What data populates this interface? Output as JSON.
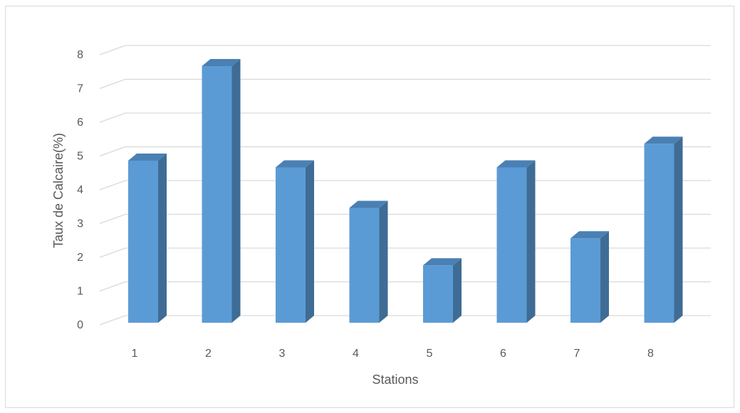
{
  "chart_data": {
    "type": "bar",
    "categories": [
      "1",
      "2",
      "3",
      "4",
      "5",
      "6",
      "7",
      "8"
    ],
    "values": [
      4.8,
      7.6,
      4.6,
      3.4,
      1.7,
      4.6,
      2.5,
      5.3
    ],
    "title": "",
    "xlabel": "Stations",
    "ylabel": "Taux de Calcaire(%)",
    "ylim": [
      0,
      8
    ],
    "yticks": [
      "0",
      "1",
      "2",
      "3",
      "4",
      "5",
      "6",
      "7",
      "8"
    ],
    "grid": true,
    "legend": "none",
    "three_d": true,
    "colors": {
      "bar_front": "#5b9bd5",
      "bar_side": "#3f6c95",
      "bar_top": "#4a80b4",
      "grid": "#d9d9d9",
      "text": "#595959",
      "border": "#d9d9d9"
    }
  }
}
